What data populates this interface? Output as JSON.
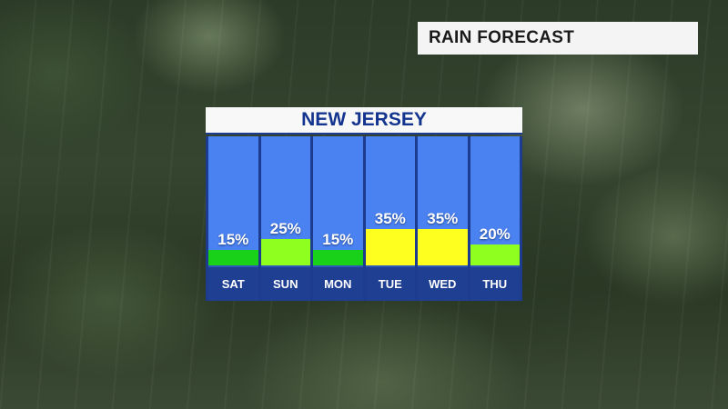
{
  "header": {
    "label": "RAIN FORECAST"
  },
  "chart_data": {
    "type": "bar",
    "title": "NEW JERSEY",
    "categories": [
      "SAT",
      "SUN",
      "MON",
      "TUE",
      "WED",
      "THU"
    ],
    "values": [
      15,
      25,
      15,
      35,
      35,
      20
    ],
    "value_labels": [
      "15%",
      "25%",
      "15%",
      "35%",
      "35%",
      "20%"
    ],
    "ylim": [
      0,
      100
    ],
    "bar_colors": [
      "#19d119",
      "#8fff1f",
      "#19d119",
      "#ffff1f",
      "#ffff1f",
      "#8fff1f"
    ],
    "background_color": "#4a82f2",
    "day_row_color": "#1f3f92",
    "title_color": "#14358f"
  }
}
